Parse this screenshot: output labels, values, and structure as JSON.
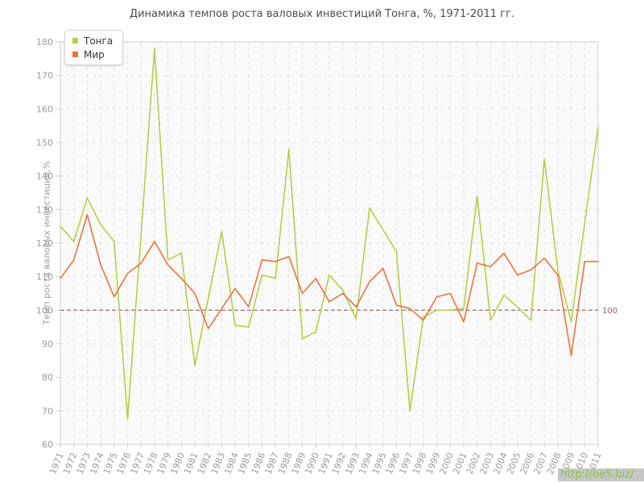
{
  "title": "Динамика темпов роста валовых инвестиций Тонга, %, 1971-2011 гг.",
  "y_axis": {
    "label": "Темп роста валовых инвестиций,%"
  },
  "legend": {
    "items": [
      {
        "label": "Тонга"
      },
      {
        "label": "Мир"
      }
    ]
  },
  "watermark": {
    "text": "http://be5.biz/"
  },
  "colors": {
    "title_text": "#4d4d4d",
    "tick_text": "#9b9b9b",
    "grid": "#e3e3e3",
    "axis_border": "#cccccc",
    "plot_bg": "#fafafa",
    "watermark_bg": "#c6c6c6",
    "watermark_text": "#8dc63f"
  },
  "chart_data": {
    "type": "line",
    "title": "Динамика темпов роста валовых инвестиций Тонга, %, 1971-2011 гг.",
    "xlabel": "",
    "ylabel": "Темп роста валовых инвестиций,%",
    "ylim": [
      60,
      180
    ],
    "ytick_step": 10,
    "grid": true,
    "legend_position": "top-left",
    "ref_line": {
      "value": 100,
      "label": "100",
      "color": "#a25a5f"
    },
    "x": [
      1971,
      1972,
      1973,
      1974,
      1975,
      1976,
      1977,
      1978,
      1979,
      1980,
      1981,
      1982,
      1983,
      1984,
      1985,
      1986,
      1987,
      1988,
      1989,
      1990,
      1991,
      1992,
      1993,
      1994,
      1995,
      1996,
      1997,
      1998,
      1999,
      2000,
      2001,
      2002,
      2003,
      2004,
      2005,
      2006,
      2007,
      2008,
      2009,
      2010,
      2011
    ],
    "series": [
      {
        "name": "Тонга",
        "color": "#b3cf46",
        "values": [
          125,
          120.5,
          133.5,
          125.5,
          120.5,
          67.5,
          122.5,
          178,
          115,
          117,
          83.5,
          103.5,
          123.5,
          95.5,
          95,
          110.5,
          109.5,
          148,
          91.5,
          93.5,
          110.5,
          106,
          97.5,
          130.5,
          124,
          117.5,
          70,
          98,
          100,
          100,
          100.5,
          134,
          97,
          104.5,
          101,
          97,
          145,
          112,
          96.5,
          126,
          154.5
        ]
      },
      {
        "name": "Мир",
        "color": "#e8743f",
        "values": [
          109.5,
          115,
          128.5,
          113.5,
          104,
          111,
          114,
          120.5,
          113.5,
          109.5,
          105,
          94.5,
          100.5,
          106.5,
          101,
          115,
          114.5,
          116,
          105,
          109.5,
          102.5,
          105,
          101,
          108.5,
          112.5,
          101.5,
          100.5,
          97,
          104,
          105,
          96.5,
          114,
          113,
          117,
          110.5,
          112,
          115.5,
          110.5,
          86.5,
          114.5,
          114.5
        ]
      }
    ]
  }
}
